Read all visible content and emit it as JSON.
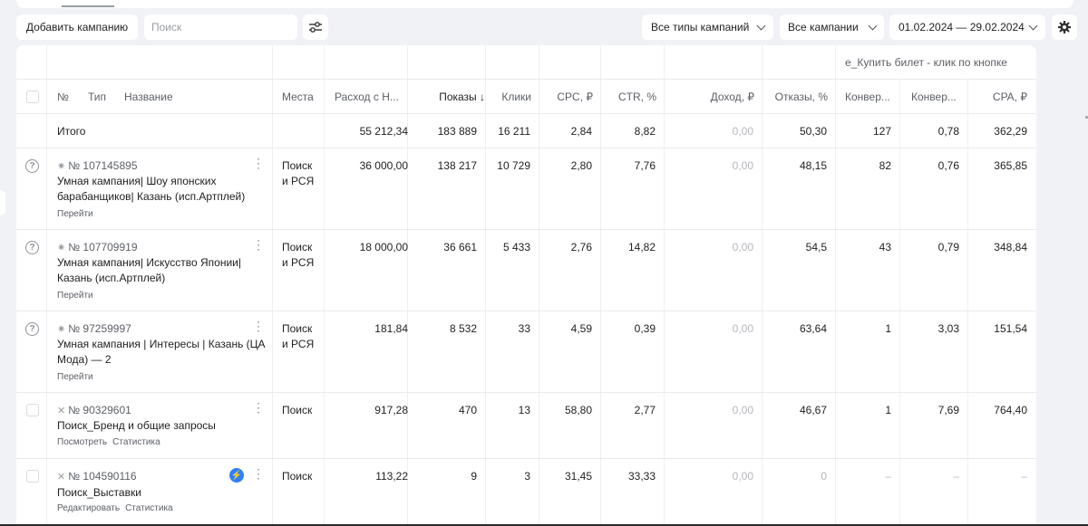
{
  "toolbar": {
    "add_campaign": "Добавить кампанию",
    "search_placeholder": "Поиск",
    "campaign_types": "Все типы кампаний",
    "campaigns": "Все кампании",
    "date_range": "01.02.2024 — 29.02.2024"
  },
  "table": {
    "goal_header": "e_Купить билет - клик по кнопке",
    "columns": {
      "num": "№",
      "type": "Тип",
      "name": "Название",
      "places": "Места",
      "spend": "Расход с Н...",
      "impressions": "Показы ↓",
      "clicks": "Клики",
      "cpc": "CPC, ₽",
      "ctr": "CTR, %",
      "income": "Доход, ₽",
      "bounces": "Отказы, %",
      "conv": "Конвер...",
      "conv_rate": "Конвер...",
      "cpa": "CPA, ₽"
    },
    "total": {
      "label": "Итого",
      "spend": "55 212,34",
      "impressions": "183 889",
      "clicks": "16 211",
      "cpc": "2,84",
      "ctr": "8,82",
      "income": "0,00",
      "bounces": "50,30",
      "conv": "127",
      "conv_rate": "0,78",
      "cpa": "362,29"
    },
    "rows": [
      {
        "id": "№ 107145895",
        "name": "Умная кампания| Шоу японских барабанщиков| Казань (исп.Артплей)",
        "links": [
          "Перейти"
        ],
        "places": "Поиск и РСЯ",
        "spend": "36 000,00",
        "impressions": "138 217",
        "clicks": "10 729",
        "cpc": "2,80",
        "ctr": "7,76",
        "income": "0,00",
        "bounces": "48,15",
        "conv": "82",
        "conv_rate": "0,76",
        "cpa": "365,85"
      },
      {
        "id": "№ 107709919",
        "name": "Умная кампания| Искусство Японии| Казань (исп.Артплей)",
        "links": [
          "Перейти"
        ],
        "places": "Поиск и РСЯ",
        "spend": "18 000,00",
        "impressions": "36 661",
        "clicks": "5 433",
        "cpc": "2,76",
        "ctr": "14,82",
        "income": "0,00",
        "bounces": "54,5",
        "conv": "43",
        "conv_rate": "0,79",
        "cpa": "348,84"
      },
      {
        "id": "№ 97259997",
        "name": "Умная кампания | Интересы | Казань (ЦА Мода) — 2",
        "links": [
          "Перейти"
        ],
        "places": "Поиск и РСЯ",
        "spend": "181,84",
        "impressions": "8 532",
        "clicks": "33",
        "cpc": "4,59",
        "ctr": "0,39",
        "income": "0,00",
        "bounces": "63,64",
        "conv": "1",
        "conv_rate": "3,03",
        "cpa": "151,54"
      },
      {
        "id": "№ 90329601",
        "name": "Поиск_Бренд и общие запросы",
        "links": [
          "Посмотреть",
          "Статистика"
        ],
        "places": "Поиск",
        "spend": "917,28",
        "impressions": "470",
        "clicks": "13",
        "cpc": "58,80",
        "ctr": "2,77",
        "income": "0,00",
        "bounces": "46,67",
        "conv": "1",
        "conv_rate": "7,69",
        "cpa": "764,40"
      },
      {
        "id": "№ 104590116",
        "name": "Поиск_Выставки",
        "links": [
          "Редактировать",
          "Статистика"
        ],
        "places": "Поиск",
        "spend": "113,22",
        "impressions": "9",
        "clicks": "3",
        "cpc": "31,45",
        "ctr": "33,33",
        "income": "0,00",
        "bounces": "0",
        "conv": "–",
        "conv_rate": "–",
        "cpa": "–"
      }
    ]
  }
}
